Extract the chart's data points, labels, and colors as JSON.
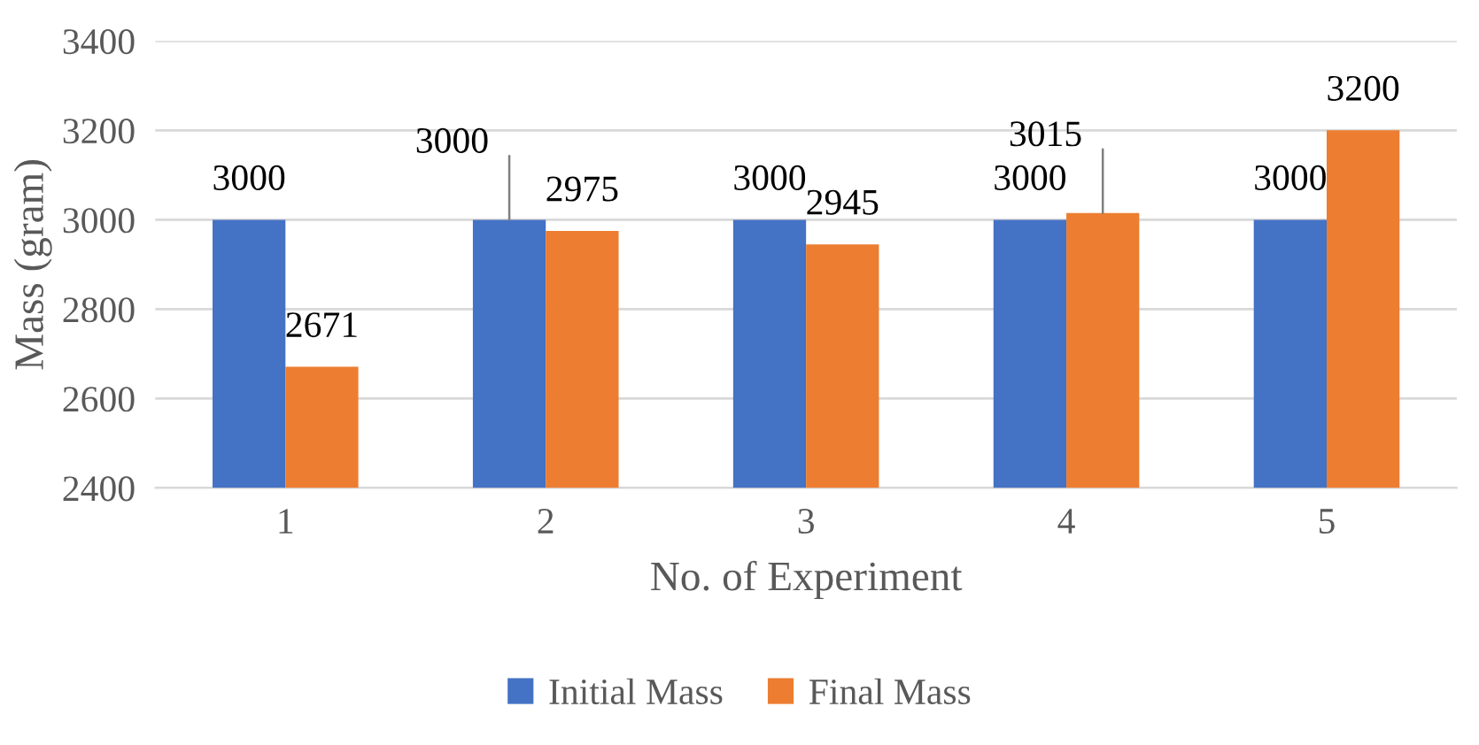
{
  "chart_data": {
    "type": "bar",
    "xlabel": "No. of Experiment",
    "ylabel": "Mass (gram)",
    "categories": [
      "1",
      "2",
      "3",
      "4",
      "5"
    ],
    "series": [
      {
        "name": "Initial Mass",
        "color": "#4472c4",
        "values": [
          3000,
          3000,
          3000,
          3000,
          3000
        ]
      },
      {
        "name": "Final Mass",
        "color": "#ed7d31",
        "values": [
          2671,
          2975,
          2945,
          3015,
          3200
        ]
      }
    ],
    "ylim": [
      2400,
      3400
    ],
    "yticks": [
      2400,
      2600,
      2800,
      3000,
      3200,
      3400
    ],
    "grid": "y",
    "legend": "bottom",
    "data_labels": true
  }
}
